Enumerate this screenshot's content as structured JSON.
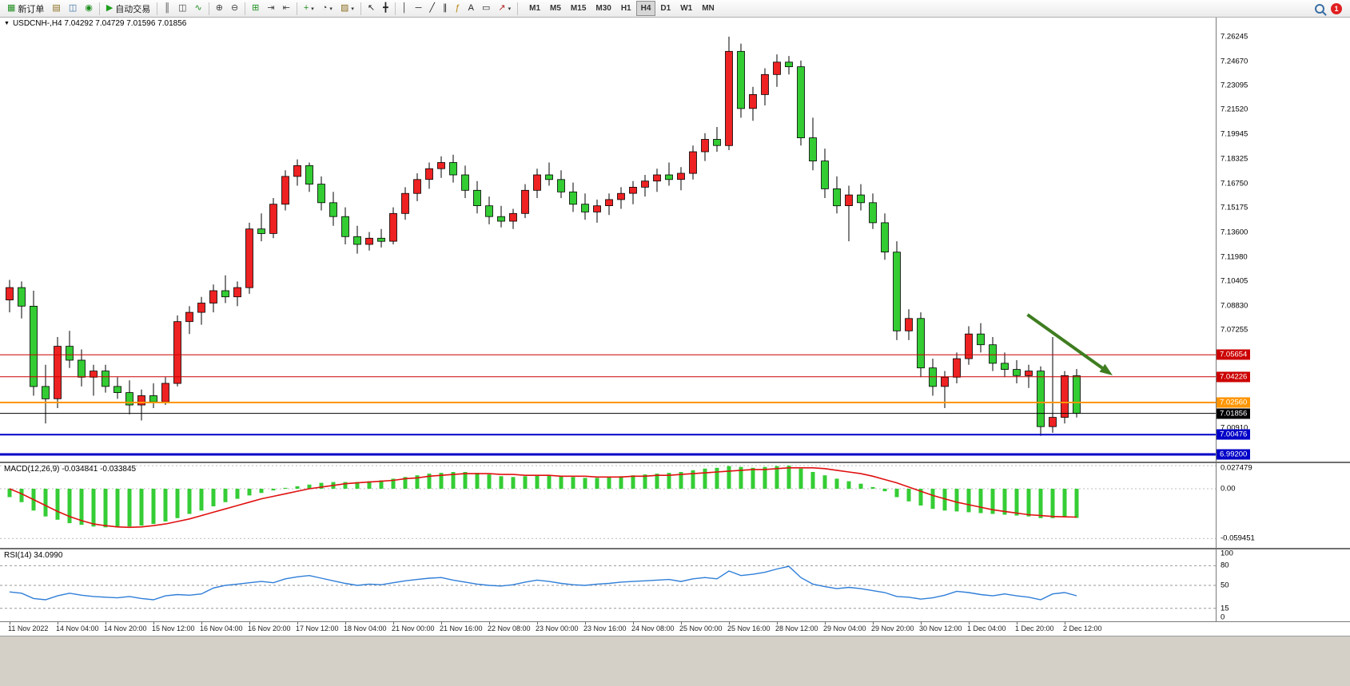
{
  "toolbar": {
    "buttons": [
      {
        "name": "new-order-button",
        "icon": "▦",
        "icon_color": "#1f8f1f",
        "label": "新订单"
      },
      {
        "name": "chart-window-button",
        "icon": "▤",
        "icon_color": "#8a6d1f"
      },
      {
        "name": "profile-button",
        "icon": "◫",
        "icon_color": "#3a6ea5"
      },
      {
        "name": "navigator-button",
        "icon": "◉",
        "icon_color": "#1f8f1f"
      },
      {
        "type": "sep"
      },
      {
        "name": "auto-trading-button",
        "icon": "▶",
        "icon_color": "#1f9f1f",
        "label": "自动交易"
      },
      {
        "type": "sep"
      },
      {
        "name": "bar-chart-button",
        "icon": "║",
        "icon_color": "#444444"
      },
      {
        "name": "candlestick-chart-button",
        "icon": "◫",
        "icon_color": "#444444"
      },
      {
        "name": "line-chart-button",
        "icon": "∿",
        "icon_color": "#1f8f1f"
      },
      {
        "type": "sep"
      },
      {
        "name": "zoom-in-button",
        "icon": "⊕",
        "icon_color": "#444444"
      },
      {
        "name": "zoom-out-button",
        "icon": "⊖",
        "icon_color": "#444444"
      },
      {
        "type": "sep"
      },
      {
        "name": "tile-windows-button",
        "icon": "⊞",
        "icon_color": "#1f8f1f"
      },
      {
        "name": "auto-scroll-button",
        "icon": "⇥",
        "icon_color": "#444444"
      },
      {
        "name": "chart-shift-button",
        "icon": "⇤",
        "icon_color": "#444444"
      },
      {
        "type": "sep"
      },
      {
        "name": "indicators-button",
        "icon": "+",
        "icon_color": "#1f8f1f",
        "caret": true
      },
      {
        "name": "periods-button",
        "icon": "◔",
        "icon_color": "#444444",
        "caret": true
      },
      {
        "name": "templates-button",
        "icon": "▨",
        "icon_color": "#8a6d1f",
        "caret": true
      },
      {
        "type": "sep"
      },
      {
        "name": "cursor-button",
        "icon": "↖",
        "icon_color": "#222222"
      },
      {
        "name": "crosshair-button",
        "icon": "╋",
        "icon_color": "#222222"
      },
      {
        "type": "sep"
      },
      {
        "name": "vertical-line-button",
        "icon": "│",
        "icon_color": "#222222"
      },
      {
        "name": "horizontal-line-button",
        "icon": "─",
        "icon_color": "#222222"
      },
      {
        "name": "trendline-button",
        "icon": "╱",
        "icon_color": "#222222"
      },
      {
        "name": "channel-button",
        "icon": "∥",
        "icon_color": "#222222"
      },
      {
        "name": "fibonacci-button",
        "icon": "ƒ",
        "icon_color": "#b8860b"
      },
      {
        "name": "text-button",
        "icon": "A",
        "icon_color": "#222222"
      },
      {
        "name": "label-button",
        "icon": "▭",
        "icon_color": "#222222"
      },
      {
        "name": "arrows-button",
        "icon": "↗",
        "icon_color": "#b22222",
        "caret": true
      },
      {
        "type": "sep"
      }
    ],
    "timeframes": [
      "M1",
      "M5",
      "M15",
      "M30",
      "H1",
      "H4",
      "D1",
      "W1",
      "MN"
    ],
    "active_timeframe": "H4",
    "notification_count": "1"
  },
  "chart": {
    "header": "USDCNH-,H4  7.04292 7.04729 7.01596 7.01856",
    "dropdown_glyph": "▼",
    "axis_labels": [
      "7.26245",
      "7.24670",
      "7.23095",
      "7.21520",
      "7.19945",
      "7.18325",
      "7.16750",
      "7.15175",
      "7.13600",
      "7.11980",
      "7.10405",
      "7.08830",
      "7.07255",
      "7.00910"
    ],
    "levels": [
      {
        "name": "resistance-line-upper",
        "label": "7.05654",
        "price": 7.05654,
        "color": "#cc0000",
        "width": 1
      },
      {
        "name": "resistance-line-lower",
        "label": "7.04226",
        "price": 7.04226,
        "color": "#cc0000",
        "width": 1
      },
      {
        "name": "support-line-orange",
        "label": "7.02560",
        "price": 7.0256,
        "color": "#ff9500",
        "width": 2
      },
      {
        "name": "current-price-line",
        "label": "7.01856",
        "price": 7.01856,
        "color": "#000000",
        "width": 1
      },
      {
        "name": "support-line-blue-upper",
        "label": "7.00476",
        "price": 7.00476,
        "color": "#0000c8",
        "width": 2
      },
      {
        "name": "support-line-blue-lower",
        "label": "6.99200",
        "price": 6.992,
        "color": "#0000c8",
        "width": 3
      }
    ]
  },
  "macd": {
    "label": "MACD(12,26,9) -0.034841 -0.033845",
    "axis_labels": [
      "0.027479",
      "0.00",
      "-0.059451"
    ],
    "axis_values": [
      0.027479,
      0,
      -0.059451
    ]
  },
  "rsi": {
    "label": "RSI(14) 34.0990",
    "axis_labels": [
      "100",
      "80",
      "50",
      "15",
      "0"
    ],
    "axis_values": [
      100,
      80,
      50,
      15,
      0
    ],
    "level_lines": [
      80,
      50,
      15
    ]
  },
  "time_axis": [
    "11 Nov 2022",
    "14 Nov 04:00",
    "14 Nov 20:00",
    "15 Nov 12:00",
    "16 Nov 04:00",
    "16 Nov 20:00",
    "17 Nov 12:00",
    "18 Nov 04:00",
    "21 Nov 00:00",
    "21 Nov 16:00",
    "22 Nov 08:00",
    "23 Nov 00:00",
    "23 Nov 16:00",
    "24 Nov 08:00",
    "25 Nov 00:00",
    "25 Nov 16:00",
    "28 Nov 12:00",
    "29 Nov 04:00",
    "29 Nov 20:00",
    "30 Nov 12:00",
    "1 Dec 04:00",
    "1 Dec 20:00",
    "2 Dec 12:00"
  ],
  "chart_data": {
    "type": "candlestick",
    "symbol": "USDCNH-",
    "timeframe": "H4",
    "ohlc_display": {
      "open": "7.04292",
      "high": "7.04729",
      "low": "7.01596",
      "close": "7.01856"
    },
    "colors": {
      "up": "#ee2222",
      "down": "#33cc33",
      "outline": "#000000",
      "macd_bar": "#35cd35",
      "macd_signal": "#e01010",
      "rsi_line": "#2f7ed8",
      "arrow": "#3f7d20"
    },
    "price_axis_top": 7.27485,
    "price_axis_bottom": 6.98835,
    "candles": [
      [
        7.092,
        7.105,
        7.084,
        7.1
      ],
      [
        7.1,
        7.104,
        7.08,
        7.088
      ],
      [
        7.088,
        7.098,
        7.03,
        7.036
      ],
      [
        7.036,
        7.05,
        7.012,
        7.028
      ],
      [
        7.028,
        7.068,
        7.022,
        7.062
      ],
      [
        7.062,
        7.072,
        7.048,
        7.053
      ],
      [
        7.053,
        7.06,
        7.036,
        7.042
      ],
      [
        7.042,
        7.05,
        7.03,
        7.046
      ],
      [
        7.046,
        7.05,
        7.032,
        7.036
      ],
      [
        7.036,
        7.042,
        7.028,
        7.032
      ],
      [
        7.032,
        7.04,
        7.018,
        7.024
      ],
      [
        7.024,
        7.034,
        7.014,
        7.03
      ],
      [
        7.03,
        7.038,
        7.022,
        7.026
      ],
      [
        7.026,
        7.042,
        7.024,
        7.038
      ],
      [
        7.038,
        7.082,
        7.036,
        7.078
      ],
      [
        7.078,
        7.088,
        7.07,
        7.084
      ],
      [
        7.084,
        7.094,
        7.076,
        7.09
      ],
      [
        7.09,
        7.102,
        7.084,
        7.098
      ],
      [
        7.098,
        7.108,
        7.09,
        7.094
      ],
      [
        7.094,
        7.104,
        7.088,
        7.1
      ],
      [
        7.1,
        7.142,
        7.096,
        7.138
      ],
      [
        7.138,
        7.148,
        7.13,
        7.135
      ],
      [
        7.135,
        7.158,
        7.132,
        7.154
      ],
      [
        7.154,
        7.176,
        7.15,
        7.172
      ],
      [
        7.172,
        7.183,
        7.166,
        7.179
      ],
      [
        7.179,
        7.181,
        7.162,
        7.167
      ],
      [
        7.167,
        7.172,
        7.15,
        7.155
      ],
      [
        7.155,
        7.162,
        7.14,
        7.146
      ],
      [
        7.146,
        7.152,
        7.128,
        7.133
      ],
      [
        7.133,
        7.14,
        7.122,
        7.128
      ],
      [
        7.128,
        7.136,
        7.124,
        7.132
      ],
      [
        7.132,
        7.138,
        7.126,
        7.13
      ],
      [
        7.13,
        7.152,
        7.128,
        7.148
      ],
      [
        7.148,
        7.165,
        7.144,
        7.161
      ],
      [
        7.161,
        7.174,
        7.156,
        7.17
      ],
      [
        7.17,
        7.181,
        7.164,
        7.177
      ],
      [
        7.177,
        7.185,
        7.171,
        7.181
      ],
      [
        7.181,
        7.186,
        7.168,
        7.173
      ],
      [
        7.173,
        7.179,
        7.158,
        7.163
      ],
      [
        7.163,
        7.169,
        7.148,
        7.153
      ],
      [
        7.153,
        7.159,
        7.141,
        7.146
      ],
      [
        7.146,
        7.153,
        7.139,
        7.143
      ],
      [
        7.143,
        7.151,
        7.138,
        7.148
      ],
      [
        7.148,
        7.167,
        7.145,
        7.163
      ],
      [
        7.163,
        7.177,
        7.158,
        7.173
      ],
      [
        7.173,
        7.181,
        7.166,
        7.17
      ],
      [
        7.17,
        7.176,
        7.158,
        7.162
      ],
      [
        7.162,
        7.168,
        7.149,
        7.154
      ],
      [
        7.154,
        7.161,
        7.144,
        7.149
      ],
      [
        7.149,
        7.157,
        7.142,
        7.153
      ],
      [
        7.153,
        7.161,
        7.147,
        7.157
      ],
      [
        7.157,
        7.165,
        7.151,
        7.161
      ],
      [
        7.161,
        7.169,
        7.154,
        7.165
      ],
      [
        7.165,
        7.173,
        7.159,
        7.169
      ],
      [
        7.169,
        7.177,
        7.162,
        7.173
      ],
      [
        7.173,
        7.181,
        7.166,
        7.17
      ],
      [
        7.17,
        7.178,
        7.163,
        7.174
      ],
      [
        7.174,
        7.192,
        7.17,
        7.188
      ],
      [
        7.188,
        7.2,
        7.182,
        7.196
      ],
      [
        7.196,
        7.204,
        7.188,
        7.192
      ],
      [
        7.192,
        7.2625,
        7.189,
        7.253
      ],
      [
        7.253,
        7.258,
        7.21,
        7.216
      ],
      [
        7.216,
        7.23,
        7.208,
        7.225
      ],
      [
        7.225,
        7.242,
        7.218,
        7.238
      ],
      [
        7.238,
        7.251,
        7.23,
        7.246
      ],
      [
        7.246,
        7.25,
        7.238,
        7.243
      ],
      [
        7.243,
        7.247,
        7.192,
        7.197
      ],
      [
        7.197,
        7.21,
        7.176,
        7.182
      ],
      [
        7.182,
        7.19,
        7.158,
        7.164
      ],
      [
        7.164,
        7.172,
        7.148,
        7.153
      ],
      [
        7.153,
        7.166,
        7.13,
        7.16
      ],
      [
        7.16,
        7.167,
        7.15,
        7.155
      ],
      [
        7.155,
        7.161,
        7.138,
        7.142
      ],
      [
        7.142,
        7.148,
        7.118,
        7.123
      ],
      [
        7.123,
        7.13,
        7.066,
        7.072
      ],
      [
        7.072,
        7.086,
        7.066,
        7.08
      ],
      [
        7.08,
        7.084,
        7.042,
        7.048
      ],
      [
        7.048,
        7.054,
        7.03,
        7.036
      ],
      [
        7.036,
        7.046,
        7.022,
        7.042
      ],
      [
        7.042,
        7.058,
        7.038,
        7.054
      ],
      [
        7.054,
        7.075,
        7.05,
        7.07
      ],
      [
        7.07,
        7.077,
        7.058,
        7.063
      ],
      [
        7.063,
        7.068,
        7.046,
        7.051
      ],
      [
        7.051,
        7.058,
        7.042,
        7.047
      ],
      [
        7.047,
        7.053,
        7.038,
        7.043
      ],
      [
        7.043,
        7.05,
        7.035,
        7.046
      ],
      [
        7.046,
        7.049,
        7.004,
        7.01
      ],
      [
        7.01,
        7.068,
        7.006,
        7.016
      ],
      [
        7.016,
        7.046,
        7.012,
        7.043
      ],
      [
        7.04292,
        7.04729,
        7.01596,
        7.01856
      ]
    ],
    "macd_histogram": [
      -0.01,
      -0.016,
      -0.026,
      -0.033,
      -0.037,
      -0.041,
      -0.043,
      -0.045,
      -0.046,
      -0.046,
      -0.045,
      -0.044,
      -0.042,
      -0.039,
      -0.035,
      -0.03,
      -0.026,
      -0.021,
      -0.016,
      -0.012,
      -0.008,
      -0.005,
      -0.002,
      0.001,
      0.003,
      0.005,
      0.007,
      0.008,
      0.008,
      0.008,
      0.009,
      0.01,
      0.012,
      0.014,
      0.016,
      0.018,
      0.019,
      0.02,
      0.02,
      0.019,
      0.017,
      0.015,
      0.014,
      0.015,
      0.016,
      0.016,
      0.015,
      0.014,
      0.013,
      0.013,
      0.014,
      0.015,
      0.016,
      0.017,
      0.018,
      0.019,
      0.02,
      0.022,
      0.024,
      0.025,
      0.027,
      0.026,
      0.025,
      0.026,
      0.027,
      0.0275,
      0.024,
      0.02,
      0.016,
      0.012,
      0.009,
      0.006,
      0.002,
      -0.003,
      -0.01,
      -0.015,
      -0.02,
      -0.024,
      -0.026,
      -0.027,
      -0.028,
      -0.029,
      -0.03,
      -0.031,
      -0.032,
      -0.033,
      -0.035,
      -0.035,
      -0.034,
      -0.0348
    ],
    "macd_signal": [
      0.0,
      -0.006,
      -0.013,
      -0.02,
      -0.027,
      -0.033,
      -0.038,
      -0.042,
      -0.044,
      -0.0455,
      -0.046,
      -0.0455,
      -0.044,
      -0.042,
      -0.039,
      -0.036,
      -0.032,
      -0.028,
      -0.024,
      -0.02,
      -0.016,
      -0.012,
      -0.009,
      -0.006,
      -0.003,
      0.0,
      0.002,
      0.004,
      0.006,
      0.007,
      0.008,
      0.009,
      0.01,
      0.012,
      0.013,
      0.015,
      0.016,
      0.017,
      0.018,
      0.018,
      0.018,
      0.017,
      0.017,
      0.016,
      0.016,
      0.016,
      0.015,
      0.015,
      0.015,
      0.014,
      0.014,
      0.014,
      0.015,
      0.015,
      0.016,
      0.016,
      0.017,
      0.018,
      0.019,
      0.02,
      0.021,
      0.022,
      0.023,
      0.023,
      0.024,
      0.025,
      0.025,
      0.025,
      0.024,
      0.022,
      0.02,
      0.018,
      0.015,
      0.011,
      0.007,
      0.002,
      -0.003,
      -0.008,
      -0.012,
      -0.016,
      -0.019,
      -0.022,
      -0.025,
      -0.027,
      -0.029,
      -0.031,
      -0.032,
      -0.033,
      -0.0335,
      -0.0338
    ],
    "rsi": [
      40,
      38,
      30,
      28,
      34,
      38,
      35,
      33,
      32,
      31,
      33,
      30,
      28,
      34,
      36,
      35,
      37,
      46,
      50,
      52,
      54,
      56,
      54,
      60,
      63,
      65,
      61,
      57,
      53,
      50,
      52,
      51,
      54,
      57,
      59,
      61,
      62,
      58,
      55,
      52,
      50,
      49,
      51,
      55,
      58,
      56,
      53,
      51,
      50,
      52,
      53,
      55,
      56,
      57,
      58,
      59,
      56,
      60,
      62,
      60,
      72,
      65,
      67,
      70,
      75,
      79,
      62,
      52,
      48,
      45,
      47,
      45,
      42,
      39,
      33,
      32,
      29,
      31,
      35,
      41,
      39,
      36,
      34,
      37,
      34,
      32,
      28,
      37,
      39,
      34.1
    ],
    "annotations": {
      "arrow": {
        "from_index": 84.9,
        "from_price": 7.0825,
        "to_index": 92,
        "to_price": 7.0432
      }
    }
  }
}
